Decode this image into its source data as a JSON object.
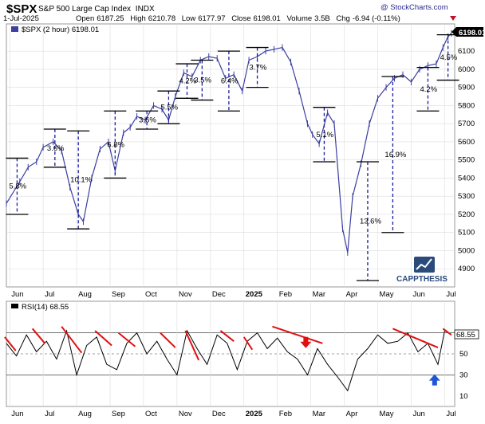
{
  "header": {
    "ticker": "$SPX",
    "name": "S&P 500 Large Cap Index",
    "exchange": "INDX",
    "date": "1-Jul-2025",
    "open_label": "Open",
    "open": "6187.25",
    "high_label": "High",
    "high": "6210.78",
    "low_label": "Low",
    "low": "6177.97",
    "close_label": "Close",
    "close": "6198.01",
    "volume_label": "Volume",
    "volume": "3.5B",
    "chg_label": "Chg",
    "chg": "-6.94 (-0.11%)",
    "credit": "@ StockCharts.com",
    "legend": "$SPX (2 hour) 6198.01",
    "last_value": "6198.01",
    "watermark": "CAPPTHESIS"
  },
  "rsi": {
    "legend": "RSI(14) 68.55",
    "last_value": "68.55",
    "levels": [
      70,
      50,
      30
    ],
    "ticks": [
      "70",
      "50",
      "30",
      "10"
    ],
    "ticks_values": [
      70,
      50,
      30,
      10
    ],
    "ylim": [
      0,
      100
    ]
  },
  "colors": {
    "price": "#3b3fa0",
    "pullback": "#1a1aa0",
    "trendline": "#e01010",
    "down_arrow": "#e01010",
    "up_arrow": "#1f55d8",
    "last_label_bg": "#000000",
    "grid": "#dcdcdc",
    "watermark": "#2a4a7a"
  },
  "chart_data": {
    "type": "line",
    "title": "S&P 500 Large Cap Index",
    "ylim": [
      4800,
      6250
    ],
    "y_ticks": [
      4900,
      5000,
      5100,
      5200,
      5300,
      5400,
      5500,
      5600,
      5700,
      5800,
      5900,
      6000,
      6100
    ],
    "x_month_labels": [
      "Jun",
      "Jul",
      "Aug",
      "Sep",
      "Oct",
      "Nov",
      "Dec",
      "2025",
      "Feb",
      "Mar",
      "Apr",
      "May",
      "Jun",
      "Jul"
    ],
    "x_month_values": [
      0,
      1,
      2,
      3,
      4,
      5,
      6,
      7,
      8,
      9,
      10,
      11,
      12,
      13
    ],
    "xlim": [
      -0.1,
      13.3
    ],
    "series": [
      {
        "x": [
          -0.1,
          0.3,
          0.55,
          0.8,
          1.0,
          1.3,
          1.55,
          1.8,
          2.05,
          2.2,
          2.45,
          2.7,
          2.95,
          3.15,
          3.4,
          3.6,
          3.8,
          4.05,
          4.3,
          4.55,
          4.75,
          4.95,
          5.2,
          5.45,
          5.7,
          5.95,
          6.2,
          6.45,
          6.7,
          6.95,
          7.15,
          7.4,
          7.65,
          7.9,
          8.15,
          8.4,
          8.65,
          8.9,
          9.05,
          9.25,
          9.5,
          9.7,
          9.95,
          10.1,
          10.25,
          10.5,
          10.75,
          11.0,
          11.25,
          11.5,
          11.75,
          12.0,
          12.25,
          12.5,
          12.75,
          12.95,
          13.1,
          13.2
        ],
        "y": [
          5260,
          5380,
          5460,
          5490,
          5570,
          5600,
          5550,
          5350,
          5200,
          5160,
          5400,
          5560,
          5600,
          5440,
          5650,
          5680,
          5740,
          5720,
          5800,
          5780,
          5720,
          5850,
          5980,
          5960,
          6050,
          6070,
          6060,
          5950,
          5970,
          5880,
          6050,
          6070,
          6100,
          6110,
          6120,
          6040,
          5880,
          5700,
          5640,
          5590,
          5760,
          5700,
          5120,
          4990,
          5300,
          5480,
          5700,
          5840,
          5900,
          5950,
          5970,
          5930,
          6000,
          6020,
          6030,
          6120,
          6180,
          6198
        ]
      }
    ],
    "pullback_markers": [
      {
        "x": 0.22,
        "top": 5510,
        "bottom": 5200,
        "label": "5.8%"
      },
      {
        "x": 1.35,
        "top": 5670,
        "bottom": 5460,
        "label": "3.6%"
      },
      {
        "x": 2.05,
        "top": 5660,
        "bottom": 5120,
        "label": "10.1%"
      },
      {
        "x": 3.15,
        "top": 5770,
        "bottom": 5400,
        "label": "6.8%"
      },
      {
        "x": 4.1,
        "top": 5770,
        "bottom": 5670,
        "label": "3.6%"
      },
      {
        "x": 4.75,
        "top": 5880,
        "bottom": 5700,
        "label": "5.5%"
      },
      {
        "x": 5.3,
        "top": 6030,
        "bottom": 5840,
        "label": "4.2%"
      },
      {
        "x": 5.75,
        "top": 6050,
        "bottom": 5830,
        "label": "3.5%"
      },
      {
        "x": 6.55,
        "top": 6100,
        "bottom": 5770,
        "label": "6.4%"
      },
      {
        "x": 7.4,
        "top": 6120,
        "bottom": 5900,
        "label": "3.7%"
      },
      {
        "x": 9.4,
        "top": 5790,
        "bottom": 5490,
        "label": "5.1%"
      },
      {
        "x": 10.7,
        "top": 5490,
        "bottom": 4835,
        "label": "13.6%"
      },
      {
        "x": 11.45,
        "top": 5960,
        "bottom": 5100,
        "label": "16.9%"
      },
      {
        "x": 12.5,
        "top": 6010,
        "bottom": 5770,
        "label": "4.2%"
      },
      {
        "x": 13.1,
        "top": 6190,
        "bottom": 5940,
        "label": "4.5%"
      }
    ]
  },
  "rsi_chart_data": {
    "type": "line",
    "x": [
      -0.1,
      0.2,
      0.5,
      0.8,
      1.1,
      1.4,
      1.7,
      2.0,
      2.3,
      2.6,
      2.9,
      3.2,
      3.5,
      3.8,
      4.1,
      4.4,
      4.7,
      5.0,
      5.3,
      5.6,
      5.9,
      6.2,
      6.5,
      6.8,
      7.1,
      7.4,
      7.7,
      8.0,
      8.3,
      8.6,
      8.9,
      9.2,
      9.5,
      9.8,
      10.1,
      10.4,
      10.7,
      11.0,
      11.3,
      11.6,
      11.9,
      12.2,
      12.5,
      12.8,
      13.0,
      13.2
    ],
    "y": [
      60,
      48,
      68,
      52,
      62,
      45,
      72,
      30,
      58,
      66,
      40,
      35,
      60,
      70,
      50,
      62,
      45,
      30,
      72,
      55,
      40,
      68,
      60,
      35,
      62,
      70,
      55,
      65,
      52,
      45,
      30,
      55,
      40,
      28,
      15,
      45,
      55,
      68,
      60,
      62,
      70,
      52,
      60,
      40,
      72,
      68.55
    ],
    "trendlines": [
      {
        "x": [
          -0.15,
          0.18
        ],
        "y": [
          66,
          53
        ]
      },
      {
        "x": [
          0.68,
          1.05
        ],
        "y": [
          74,
          60
        ]
      },
      {
        "x": [
          1.55,
          2.15
        ],
        "y": [
          76,
          51
        ]
      },
      {
        "x": [
          2.55,
          3.05
        ],
        "y": [
          72,
          58
        ]
      },
      {
        "x": [
          3.25,
          3.75
        ],
        "y": [
          70,
          57
        ]
      },
      {
        "x": [
          4.5,
          4.95
        ],
        "y": [
          70,
          56
        ]
      },
      {
        "x": [
          5.25,
          5.65
        ],
        "y": [
          72,
          44
        ]
      },
      {
        "x": [
          6.3,
          6.7
        ],
        "y": [
          72,
          62
        ]
      },
      {
        "x": [
          7.0,
          7.25
        ],
        "y": [
          66,
          54
        ]
      },
      {
        "x": [
          7.85,
          9.35
        ],
        "y": [
          76,
          60
        ]
      },
      {
        "x": [
          11.45,
          12.8
        ],
        "y": [
          74,
          56
        ]
      },
      {
        "x": [
          12.95,
          13.2
        ],
        "y": [
          74,
          68
        ]
      }
    ],
    "arrow_down": {
      "x": 8.85,
      "y": 60
    },
    "arrow_up": {
      "x": 12.7,
      "y": 26
    }
  }
}
